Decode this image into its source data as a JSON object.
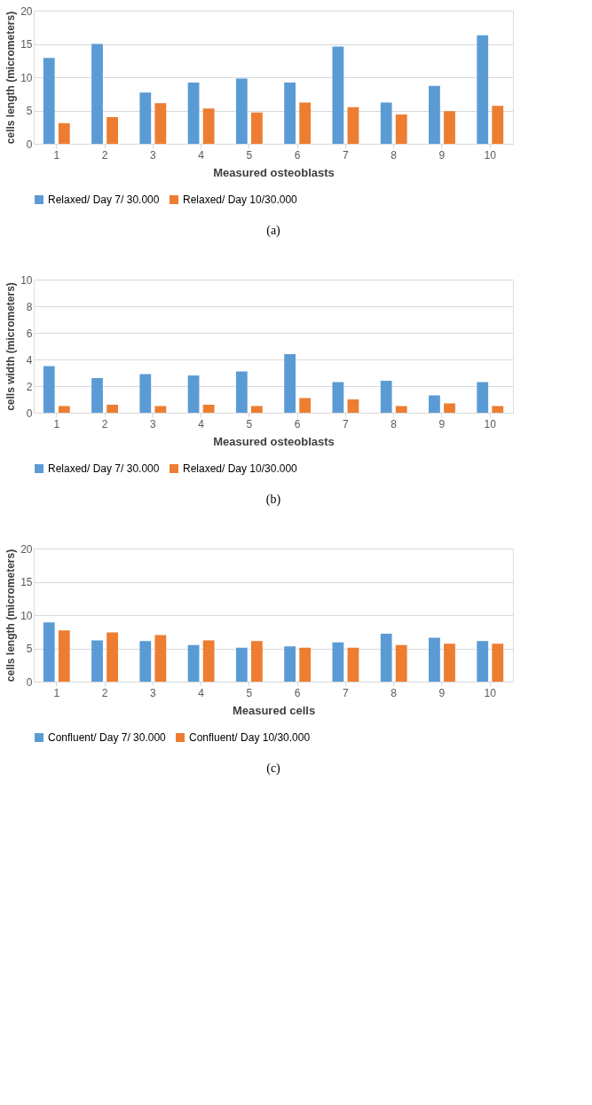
{
  "chart_data": [
    {
      "type": "bar",
      "xlabel": "Measured osteoblasts",
      "ylabel": "cells length (micrometers)",
      "categories": [
        "1",
        "2",
        "3",
        "4",
        "5",
        "6",
        "7",
        "8",
        "9",
        "10"
      ],
      "ylim": [
        0,
        20
      ],
      "yticks": [
        0,
        5,
        10,
        15,
        20
      ],
      "grid": "y",
      "legend": "bottom",
      "annotations": [
        "(a)"
      ],
      "series": [
        {
          "name": "Relaxed/ Day 7/ 30.000",
          "color": "#5b9bd5",
          "values": [
            12.9,
            15.0,
            7.7,
            9.2,
            9.8,
            9.2,
            14.6,
            6.2,
            8.7,
            16.3
          ]
        },
        {
          "name": "Relaxed/ Day 10/30.000",
          "color": "#ed7d31",
          "values": [
            3.1,
            4.0,
            6.1,
            5.3,
            4.7,
            6.2,
            5.5,
            4.4,
            4.9,
            5.7
          ]
        }
      ]
    },
    {
      "type": "bar",
      "xlabel": "Measured osteoblasts",
      "ylabel": "cells width (micrometers)",
      "categories": [
        "1",
        "2",
        "3",
        "4",
        "5",
        "6",
        "7",
        "8",
        "9",
        "10"
      ],
      "ylim": [
        0,
        10
      ],
      "yticks": [
        0,
        2,
        4,
        6,
        8,
        10
      ],
      "grid": "y",
      "legend": "bottom",
      "annotations": [
        "(b)"
      ],
      "series": [
        {
          "name": "Relaxed/ Day 7/ 30.000",
          "color": "#5b9bd5",
          "values": [
            3.5,
            2.6,
            2.9,
            2.8,
            3.1,
            4.4,
            2.3,
            2.4,
            1.3,
            2.3
          ]
        },
        {
          "name": "Relaxed/ Day 10/30.000",
          "color": "#ed7d31",
          "values": [
            0.5,
            0.6,
            0.5,
            0.6,
            0.5,
            1.1,
            1.0,
            0.5,
            0.7,
            0.5
          ]
        }
      ]
    },
    {
      "type": "bar",
      "xlabel": "Measured cells",
      "ylabel": "cells length (micrometers)",
      "categories": [
        "1",
        "2",
        "3",
        "4",
        "5",
        "6",
        "7",
        "8",
        "9",
        "10"
      ],
      "ylim": [
        0,
        20
      ],
      "yticks": [
        0,
        5,
        10,
        15,
        20
      ],
      "grid": "y",
      "legend": "bottom",
      "annotations": [
        "(c)"
      ],
      "series": [
        {
          "name": "Confluent/ Day 7/ 30.000",
          "color": "#5b9bd5",
          "values": [
            8.9,
            6.2,
            6.1,
            5.5,
            5.1,
            5.3,
            5.9,
            7.2,
            6.6,
            6.1
          ]
        },
        {
          "name": "Confluent/ Day 10/30.000",
          "color": "#ed7d31",
          "values": [
            7.7,
            7.4,
            7.0,
            6.2,
            6.1,
            5.1,
            5.1,
            5.5,
            5.7,
            5.7
          ]
        }
      ]
    }
  ]
}
